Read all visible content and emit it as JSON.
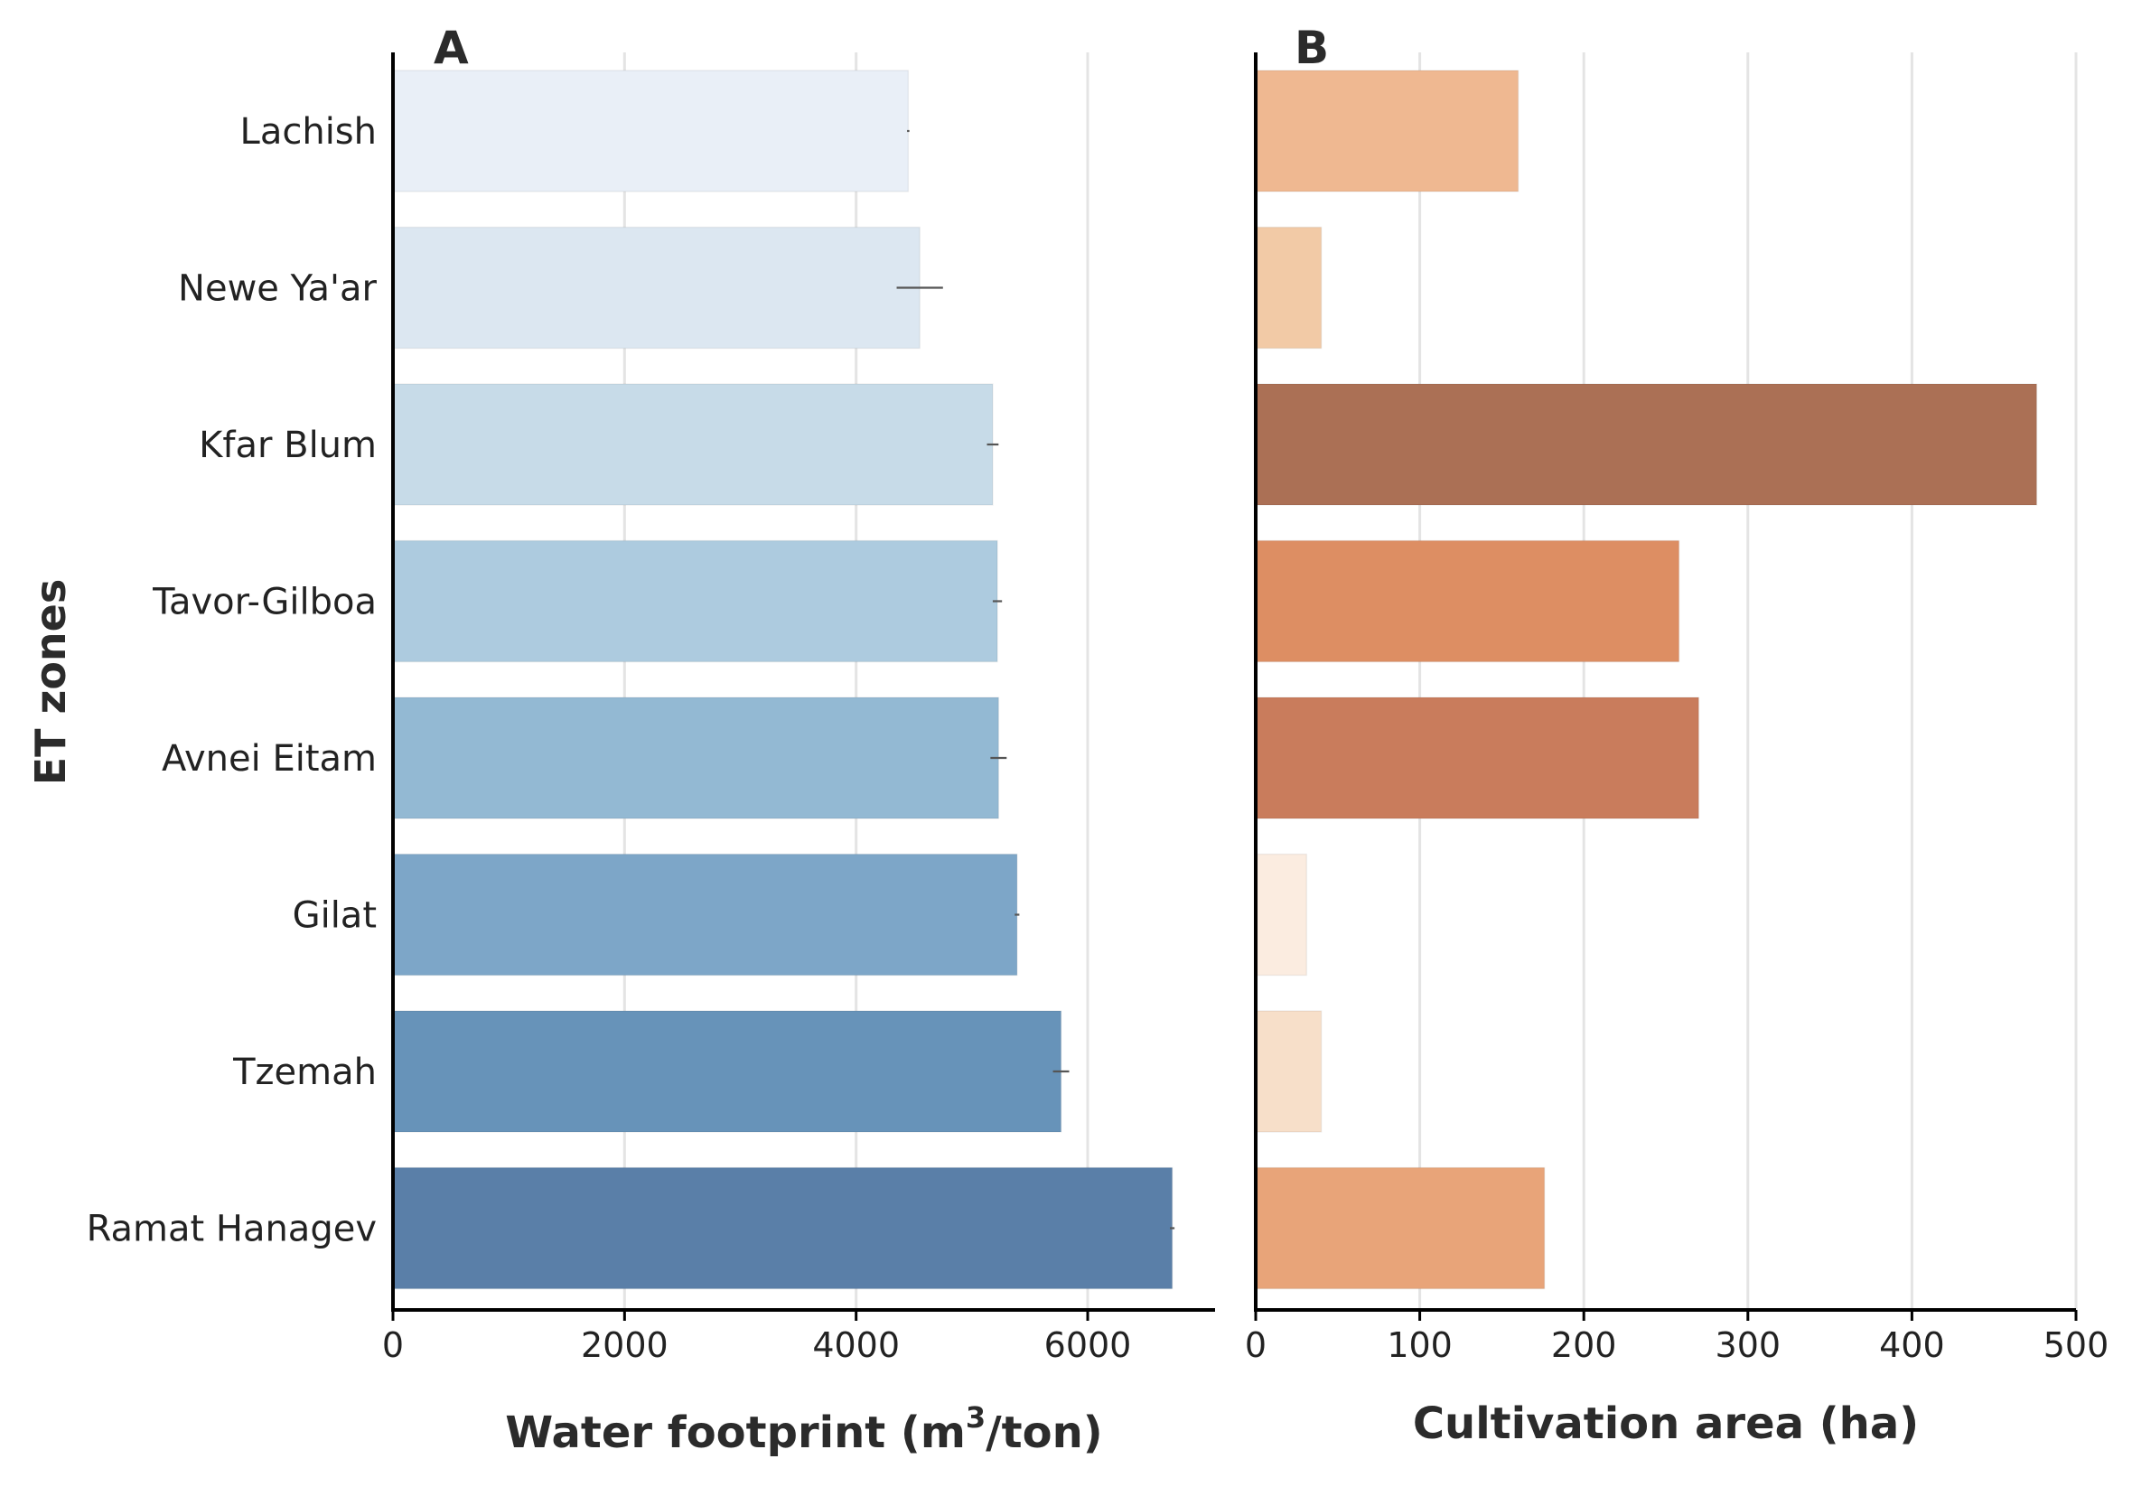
{
  "y_axis_label": "ET zones",
  "chart_data": [
    {
      "type": "bar",
      "orientation": "horizontal",
      "panel_label": "A",
      "categories": [
        "Lachish",
        "Newe Ya'ar",
        "Kfar Blum",
        "Tavor-Gilboa",
        "Avnei Eitam",
        "Gilat",
        "Tzemah",
        "Ramat Hanagev"
      ],
      "values": [
        4450,
        4550,
        5180,
        5220,
        5230,
        5390,
        5770,
        6730
      ],
      "errors": [
        10,
        200,
        50,
        40,
        70,
        20,
        70,
        20
      ],
      "xlabel_main": "Water footprint (m",
      "xlabel_sup": "3",
      "xlabel_tail": "/ton)",
      "xlim": [
        0,
        7100
      ],
      "xticks": [
        0,
        2000,
        4000,
        6000
      ],
      "xtick_labels": [
        "0",
        "2000",
        "4000",
        "6000"
      ],
      "grid": "vertical",
      "colors": [
        "#e9eff7",
        "#dce7f1",
        "#c7dbe8",
        "#adcbdf",
        "#93b9d3",
        "#7da6c8",
        "#6793b9",
        "#5a7fa8"
      ]
    },
    {
      "type": "bar",
      "orientation": "horizontal",
      "panel_label": "B",
      "categories": [
        "Lachish",
        "Newe Ya'ar",
        "Kfar Blum",
        "Tavor-Gilboa",
        "Avnei Eitam",
        "Gilat",
        "Tzemah",
        "Ramat Hanagev"
      ],
      "values": [
        160,
        40,
        476,
        258,
        270,
        31,
        40,
        176
      ],
      "xlabel": "Cultivation area (ha)",
      "xlim": [
        0,
        500
      ],
      "xticks": [
        0,
        100,
        200,
        300,
        400,
        500
      ],
      "xtick_labels": [
        "0",
        "100",
        "200",
        "300",
        "400",
        "500"
      ],
      "grid": "vertical",
      "colors": [
        "#efb891",
        "#f2caa6",
        "#ab7055",
        "#dd8e63",
        "#c97c5c",
        "#fbece0",
        "#f7dfc9",
        "#e8a479"
      ]
    }
  ]
}
